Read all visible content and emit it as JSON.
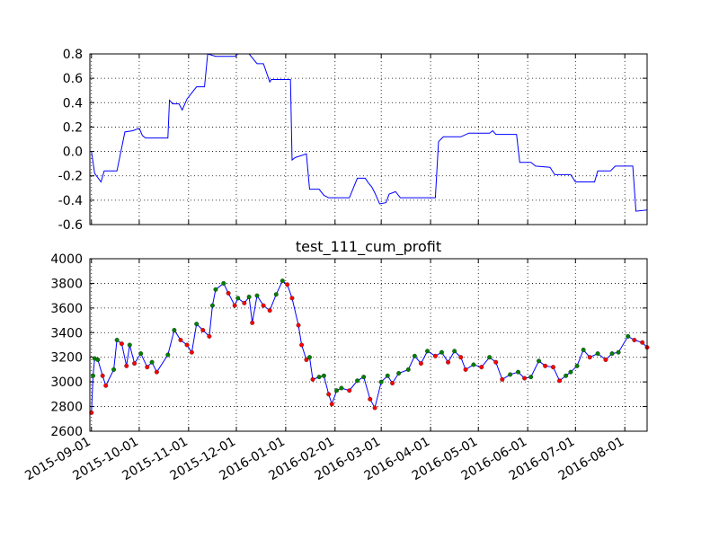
{
  "chart_data": [
    {
      "type": "line",
      "xlim": [
        "2015-08-31",
        "2016-08-15"
      ],
      "ylim": [
        -0.6,
        0.8
      ],
      "yticks": [
        -0.6,
        -0.4,
        -0.2,
        {
          "value": 0,
          "label": "0.0"
        },
        0.2,
        0.4,
        0.6,
        0.8
      ],
      "grid": true,
      "x": [
        "2015-09-01",
        "2015-09-03",
        "2015-09-07",
        "2015-09-09",
        "2015-09-17",
        "2015-09-22",
        "2015-09-27",
        "2015-10-01",
        "2015-10-03",
        "2015-10-05",
        "2015-10-19",
        "2015-10-20",
        "2015-10-22",
        "2015-10-26",
        "2015-10-28",
        "2015-10-31",
        "2015-11-03",
        "2015-11-06",
        "2015-11-11",
        "2015-11-13",
        "2015-11-18",
        "2015-11-30",
        "2015-12-02",
        "2015-12-09",
        "2015-12-14",
        "2015-12-18",
        "2015-12-22",
        "2015-12-23",
        "2016-01-04",
        "2016-01-05",
        "2016-01-07",
        "2016-01-14",
        "2016-01-16",
        "2016-01-22",
        "2016-01-25",
        "2016-01-28",
        "2016-02-10",
        "2016-02-15",
        "2016-02-20",
        "2016-02-22",
        "2016-02-24",
        "2016-02-26",
        "2016-02-29",
        "2016-03-04",
        "2016-03-06",
        "2016-03-10",
        "2016-03-13",
        "2016-04-04",
        "2016-04-06",
        "2016-04-09",
        "2016-04-20",
        "2016-04-25",
        "2016-05-08",
        "2016-05-10",
        "2016-05-12",
        "2016-05-25",
        "2016-05-27",
        "2016-06-03",
        "2016-06-06",
        "2016-06-15",
        "2016-06-18",
        "2016-06-28",
        "2016-07-01",
        "2016-07-13",
        "2016-07-15",
        "2016-07-23",
        "2016-07-26",
        "2016-08-06",
        "2016-08-08",
        "2016-08-15"
      ],
      "series": [
        {
          "color": "#0000ff",
          "values": [
            0.0,
            -0.18,
            -0.25,
            -0.16,
            -0.16,
            0.16,
            0.17,
            0.19,
            0.13,
            0.11,
            0.11,
            0.42,
            0.39,
            0.39,
            0.34,
            0.43,
            0.48,
            0.53,
            0.53,
            0.8,
            0.78,
            0.78,
            0.8,
            0.8,
            0.72,
            0.72,
            0.57,
            0.59,
            0.59,
            -0.07,
            -0.05,
            -0.02,
            -0.31,
            -0.31,
            -0.36,
            -0.38,
            -0.38,
            -0.22,
            -0.22,
            -0.26,
            -0.29,
            -0.34,
            -0.43,
            -0.42,
            -0.35,
            -0.33,
            -0.38,
            -0.38,
            0.08,
            0.12,
            0.12,
            0.15,
            0.15,
            0.17,
            0.14,
            0.14,
            -0.09,
            -0.09,
            -0.12,
            -0.13,
            -0.19,
            -0.19,
            -0.25,
            -0.25,
            -0.16,
            -0.16,
            -0.12,
            -0.12,
            -0.49,
            -0.48
          ]
        }
      ]
    },
    {
      "type": "line",
      "title": "test_111_cum_profit",
      "xlim": [
        "2015-08-31",
        "2016-08-15"
      ],
      "xticks": [
        "2015-09-01",
        "2015-10-01",
        "2015-11-01",
        "2015-12-01",
        "2016-01-01",
        "2016-02-01",
        "2016-03-01",
        "2016-04-01",
        "2016-05-01",
        "2016-06-01",
        "2016-07-01",
        "2016-08-01"
      ],
      "ylim": [
        2600,
        4000
      ],
      "yticks": [
        2600,
        2800,
        3000,
        3200,
        3400,
        3600,
        3800,
        4000
      ],
      "grid": true,
      "x": [
        "2015-09-01",
        "2015-09-02",
        "2015-09-03",
        "2015-09-05",
        "2015-09-08",
        "2015-09-10",
        "2015-09-15",
        "2015-09-17",
        "2015-09-20",
        "2015-09-23",
        "2015-09-25",
        "2015-09-28",
        "2015-10-02",
        "2015-10-06",
        "2015-10-09",
        "2015-10-12",
        "2015-10-19",
        "2015-10-23",
        "2015-10-27",
        "2015-10-31",
        "2015-11-03",
        "2015-11-06",
        "2015-11-10",
        "2015-11-14",
        "2015-11-16",
        "2015-11-18",
        "2015-11-23",
        "2015-11-26",
        "2015-11-30",
        "2015-12-02",
        "2015-12-06",
        "2015-12-09",
        "2015-12-11",
        "2015-12-14",
        "2015-12-18",
        "2015-12-22",
        "2015-12-26",
        "2015-12-30",
        "2016-01-02",
        "2016-01-05",
        "2016-01-09",
        "2016-01-11",
        "2016-01-14",
        "2016-01-16",
        "2016-01-18",
        "2016-01-22",
        "2016-01-25",
        "2016-01-28",
        "2016-01-30",
        "2016-02-02",
        "2016-02-05",
        "2016-02-10",
        "2016-02-15",
        "2016-02-19",
        "2016-02-23",
        "2016-02-26",
        "2016-03-01",
        "2016-03-05",
        "2016-03-08",
        "2016-03-12",
        "2016-03-18",
        "2016-03-22",
        "2016-03-26",
        "2016-03-30",
        "2016-04-04",
        "2016-04-08",
        "2016-04-12",
        "2016-04-16",
        "2016-04-20",
        "2016-04-23",
        "2016-04-28",
        "2016-05-03",
        "2016-05-08",
        "2016-05-12",
        "2016-05-16",
        "2016-05-21",
        "2016-05-26",
        "2016-05-30",
        "2016-06-03",
        "2016-06-08",
        "2016-06-12",
        "2016-06-17",
        "2016-06-21",
        "2016-06-25",
        "2016-06-28",
        "2016-07-02",
        "2016-07-06",
        "2016-07-10",
        "2016-07-15",
        "2016-07-20",
        "2016-07-24",
        "2016-07-28",
        "2016-08-03",
        "2016-08-07",
        "2016-08-12",
        "2016-08-15"
      ],
      "series": [
        {
          "color": "#0000ff",
          "values": [
            2750,
            3050,
            3190,
            3180,
            3050,
            2970,
            3100,
            3340,
            3310,
            3130,
            3300,
            3150,
            3230,
            3120,
            3160,
            3080,
            3220,
            3420,
            3340,
            3300,
            3240,
            3470,
            3420,
            3370,
            3620,
            3750,
            3800,
            3720,
            3620,
            3680,
            3640,
            3690,
            3480,
            3700,
            3620,
            3580,
            3710,
            3820,
            3790,
            3680,
            3460,
            3300,
            3180,
            3200,
            3020,
            3040,
            3050,
            2900,
            2820,
            2930,
            2950,
            2930,
            3010,
            3040,
            2860,
            2790,
            3000,
            3050,
            2990,
            3070,
            3100,
            3210,
            3150,
            3250,
            3210,
            3240,
            3160,
            3250,
            3200,
            3100,
            3140,
            3120,
            3200,
            3160,
            3020,
            3060,
            3080,
            3030,
            3040,
            3170,
            3130,
            3120,
            3010,
            3050,
            3080,
            3130,
            3260,
            3200,
            3230,
            3180,
            3230,
            3240,
            3370,
            3340,
            3320,
            3280
          ],
          "marker_colors": [
            "#ff0000",
            "#008000",
            "#008000",
            "#008000",
            "#ff0000",
            "#ff0000",
            "#008000",
            "#008000",
            "#ff0000",
            "#ff0000",
            "#008000",
            "#ff0000",
            "#008000",
            "#ff0000",
            "#008000",
            "#ff0000",
            "#008000",
            "#008000",
            "#ff0000",
            "#ff0000",
            "#ff0000",
            "#008000",
            "#ff0000",
            "#ff0000",
            "#008000",
            "#008000",
            "#008000",
            "#ff0000",
            "#ff0000",
            "#008000",
            "#ff0000",
            "#008000",
            "#ff0000",
            "#008000",
            "#ff0000",
            "#ff0000",
            "#008000",
            "#008000",
            "#ff0000",
            "#ff0000",
            "#ff0000",
            "#ff0000",
            "#ff0000",
            "#008000",
            "#ff0000",
            "#008000",
            "#008000",
            "#ff0000",
            "#ff0000",
            "#008000",
            "#008000",
            "#ff0000",
            "#008000",
            "#008000",
            "#ff0000",
            "#ff0000",
            "#008000",
            "#008000",
            "#ff0000",
            "#008000",
            "#008000",
            "#008000",
            "#ff0000",
            "#008000",
            "#ff0000",
            "#008000",
            "#ff0000",
            "#008000",
            "#ff0000",
            "#ff0000",
            "#008000",
            "#ff0000",
            "#008000",
            "#ff0000",
            "#ff0000",
            "#008000",
            "#008000",
            "#ff0000",
            "#008000",
            "#008000",
            "#ff0000",
            "#ff0000",
            "#ff0000",
            "#008000",
            "#008000",
            "#008000",
            "#008000",
            "#ff0000",
            "#008000",
            "#ff0000",
            "#008000",
            "#008000",
            "#008000",
            "#ff0000",
            "#ff0000",
            "#ff0000"
          ]
        }
      ]
    }
  ]
}
